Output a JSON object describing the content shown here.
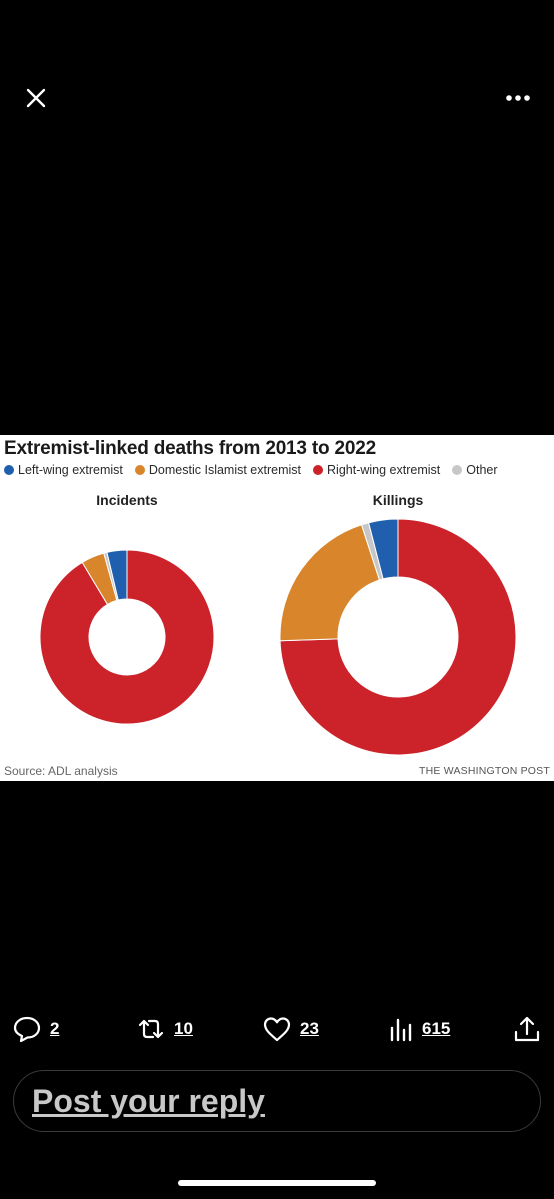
{
  "viewer": {
    "close_icon": "close-icon",
    "more_icon": "more-horizontal-icon"
  },
  "chart_image": {
    "title": "Extremist-linked deaths from 2013 to 2022",
    "legend": [
      {
        "label": "Left-wing extremist",
        "color": "#1f5fad"
      },
      {
        "label": "Domestic Islamist extremist",
        "color": "#d8852b"
      },
      {
        "label": "Right-wing extremist",
        "color": "#cc2229"
      },
      {
        "label": "Other",
        "color": "#c7c7c7"
      }
    ],
    "source": "Source: ADL analysis",
    "publisher": "THE WASHINGTON POST"
  },
  "chart_data": [
    {
      "type": "pie",
      "title": "Incidents",
      "categories": [
        "Left-wing extremist",
        "Domestic Islamist extremist",
        "Right-wing extremist",
        "Other"
      ],
      "values": [
        3.7,
        4.3,
        91.4,
        0.6
      ],
      "unit": "% of incidents (estimated)",
      "colors": [
        "#1f5fad",
        "#d8852b",
        "#cc2229",
        "#c7c7c7"
      ]
    },
    {
      "type": "pie",
      "title": "Killings",
      "categories": [
        "Left-wing extremist",
        "Domestic Islamist extremist",
        "Right-wing extremist",
        "Other"
      ],
      "values": [
        4.0,
        20.5,
        74.5,
        1.0
      ],
      "unit": "% of killings (estimated)",
      "colors": [
        "#1f5fad",
        "#d8852b",
        "#cc2229",
        "#c7c7c7"
      ]
    }
  ],
  "actions": {
    "replies": {
      "count": "2",
      "icon": "reply-icon"
    },
    "reposts": {
      "count": "10",
      "icon": "repost-icon"
    },
    "likes": {
      "count": "23",
      "icon": "heart-icon"
    },
    "views": {
      "count": "615",
      "icon": "views-icon"
    },
    "share_icon": "share-icon"
  },
  "reply": {
    "placeholder": "Post your reply"
  }
}
